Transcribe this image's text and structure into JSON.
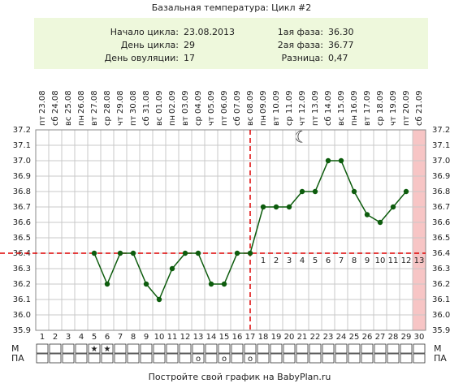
{
  "title": "Базальная температура: Цикл #2",
  "info": {
    "left": [
      {
        "label": "Начало цикла:",
        "value": "23.08.2013"
      },
      {
        "label": "День цикла:",
        "value": 29
      },
      {
        "label": "День овуляции:",
        "value": 17
      }
    ],
    "right": [
      {
        "label": "1ая фаза:",
        "value": "36.30"
      },
      {
        "label": "2ая фаза:",
        "value": "36.77"
      },
      {
        "label": "Разница:",
        "value": "0,47"
      }
    ]
  },
  "chart_data": {
    "type": "line",
    "categories": [
      "1",
      "2",
      "3",
      "4",
      "5",
      "6",
      "7",
      "8",
      "9",
      "10",
      "11",
      "12",
      "13",
      "14",
      "15",
      "16",
      "17",
      "18",
      "19",
      "20",
      "21",
      "22",
      "23",
      "24",
      "25",
      "26",
      "27",
      "28",
      "29",
      "30"
    ],
    "weekdays": [
      "пт",
      "сб",
      "вс",
      "пн",
      "вт",
      "ср",
      "чт",
      "пт",
      "сб",
      "вс",
      "пн",
      "вт",
      "ср",
      "чт",
      "пт",
      "сб",
      "вс",
      "пн",
      "вт",
      "ср",
      "чт",
      "пт",
      "сб",
      "вс",
      "пн",
      "вт",
      "ср",
      "чт",
      "пт",
      "сб"
    ],
    "dates": [
      "23.08",
      "24.08",
      "25.08",
      "26.08",
      "27.08",
      "28.08",
      "29.08",
      "30.08",
      "31.08",
      "01.09",
      "02.09",
      "03.09",
      "04.09",
      "05.09",
      "06.09",
      "07.09",
      "08.09",
      "09.09",
      "10.09",
      "11.09",
      "12.09",
      "13.09",
      "14.09",
      "15.09",
      "16.09",
      "17.09",
      "18.09",
      "19.09",
      "20.09",
      "21.09"
    ],
    "values": [
      null,
      null,
      null,
      null,
      36.4,
      36.2,
      36.4,
      36.4,
      36.2,
      36.1,
      36.3,
      36.4,
      36.4,
      36.2,
      36.2,
      36.4,
      36.4,
      36.7,
      36.7,
      36.7,
      36.8,
      36.8,
      37.0,
      37.0,
      36.8,
      36.65,
      36.6,
      36.7,
      36.8,
      null
    ],
    "color": "#0d5c0d",
    "ylim": [
      35.9,
      37.2
    ],
    "yticks": [
      35.9,
      {
        "value": 36,
        "label": "36.0"
      },
      36.1,
      36.2,
      36.3,
      36.4,
      36.5,
      36.6,
      36.7,
      36.8,
      36.9,
      {
        "value": 37,
        "label": "37.0"
      },
      37.1,
      37.2
    ],
    "cover_line": 36.4,
    "luteal_days": [
      1,
      2,
      3,
      4,
      5,
      6,
      7,
      8,
      9,
      10,
      11,
      12,
      13
    ],
    "shaded_category": "30",
    "rows": [
      {
        "label": "М",
        "symbol": "★",
        "days": [
          5,
          6
        ]
      },
      {
        "label": "ПА",
        "symbol": "o",
        "days": [
          13,
          15,
          17
        ]
      }
    ]
  },
  "footer": "Постройте свой график на BabyPlan.ru"
}
